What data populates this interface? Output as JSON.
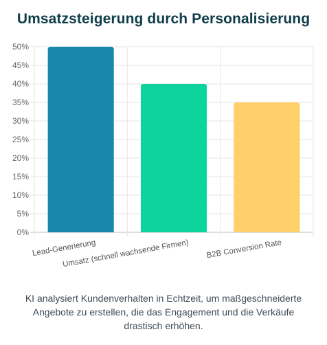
{
  "header": {
    "title": "Umsatzsteigerung durch Personalisierung"
  },
  "chart_data": {
    "type": "bar",
    "title": "Umsatzsteigerung durch Personalisierung",
    "categories": [
      "Lead-Generierung",
      "Umsatz (schnell wachsende Firmen)",
      "B2B Conversion Rate"
    ],
    "values": [
      50,
      40,
      35
    ],
    "unit": "%",
    "ylim": [
      0,
      50
    ],
    "yticks": [
      "0%",
      "5%",
      "10%",
      "15%",
      "20%",
      "25%",
      "30%",
      "35%",
      "40%",
      "45%",
      "50%"
    ],
    "colors": [
      "#1887ae",
      "#0cd49c",
      "#ffd069"
    ],
    "grid": true,
    "legend": "none"
  },
  "caption": {
    "lines": [
      "KI analysiert Kundenverhalten in Echtzeit, um maßgeschneiderte",
      "Angebote zu erstellen, die das Engagement und die Verkäufe",
      "drastisch erhöhen."
    ]
  }
}
